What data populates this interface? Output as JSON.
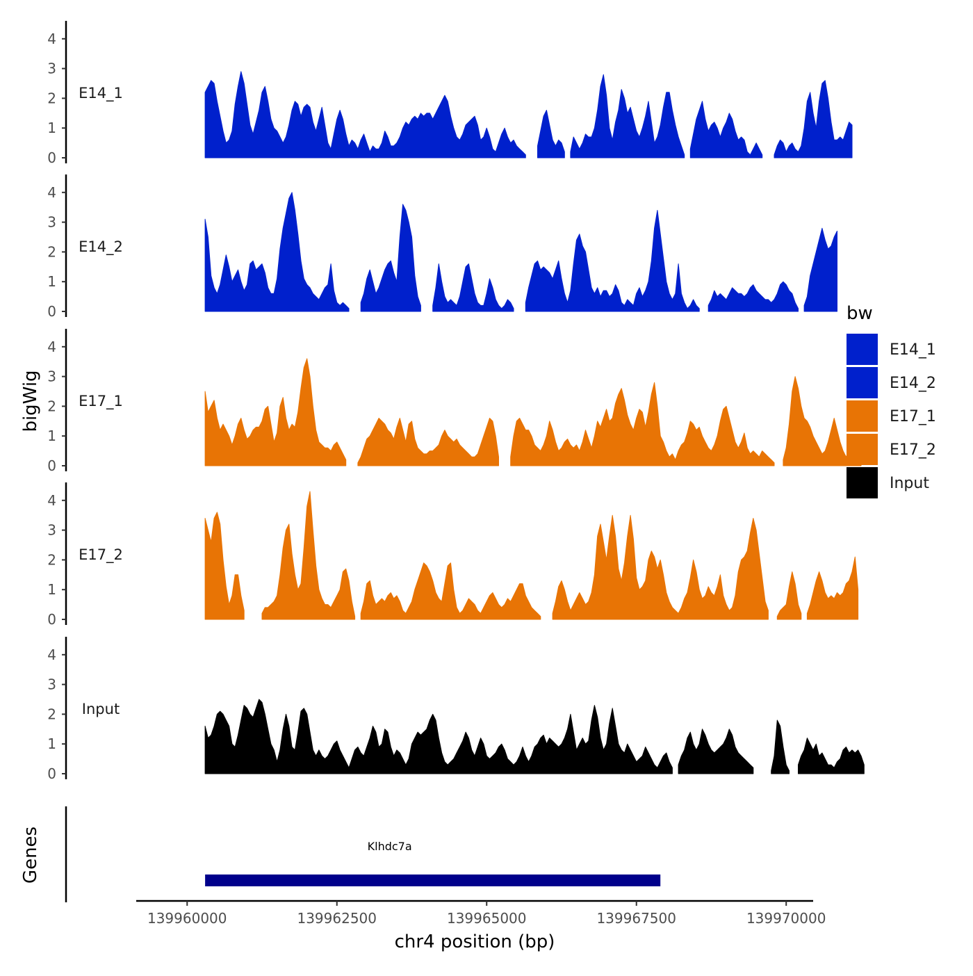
{
  "chart_data": {
    "type": "area",
    "title": "",
    "region": {
      "chromosome": "chr4",
      "start": 139960300,
      "end": 139970000
    },
    "xlim": [
      139959150,
      139970450
    ],
    "ylim": [
      0,
      4.5
    ],
    "xlabel": "chr4 position (bp)",
    "ylabel": "bigWig",
    "x_ticks": [
      {
        "value": 139960000,
        "label": "139960000"
      },
      {
        "value": 139962500,
        "label": "139962500"
      },
      {
        "value": 139965000,
        "label": "139965000"
      },
      {
        "value": 139967500,
        "label": "139967500"
      },
      {
        "value": 139970000,
        "label": "139970000"
      }
    ],
    "y_ticks": [
      {
        "value": 0,
        "label": "0"
      },
      {
        "value": 1,
        "label": "1"
      },
      {
        "value": 2,
        "label": "2"
      },
      {
        "value": 3,
        "label": "3"
      },
      {
        "value": 4,
        "label": "4"
      }
    ],
    "legend": {
      "title": "bw",
      "position": "right",
      "entries": [
        {
          "name": "E14_1",
          "color": "#0020CC"
        },
        {
          "name": "E14_2",
          "color": "#0020CC"
        },
        {
          "name": "E17_1",
          "color": "#E87405"
        },
        {
          "name": "E17_2",
          "color": "#E87405"
        },
        {
          "name": "Input",
          "color": "#000000"
        }
      ]
    },
    "series": [
      {
        "name": "E14_1",
        "color": "#0020CC",
        "step": 50,
        "values": [
          2.2,
          2.4,
          2.6,
          2.5,
          1.9,
          1.4,
          0.9,
          0.5,
          0.6,
          0.9,
          1.8,
          2.4,
          2.9,
          2.5,
          1.8,
          1.1,
          0.8,
          1.2,
          1.6,
          2.2,
          2.4,
          1.9,
          1.3,
          1.0,
          0.9,
          0.7,
          0.5,
          0.7,
          1.1,
          1.6,
          1.9,
          1.8,
          1.4,
          1.7,
          1.8,
          1.7,
          1.2,
          0.9,
          1.3,
          1.7,
          1.1,
          0.5,
          0.3,
          0.8,
          1.3,
          1.6,
          1.3,
          0.8,
          0.4,
          0.6,
          0.5,
          0.3,
          0.6,
          0.8,
          0.5,
          0.2,
          0.4,
          0.3,
          0.3,
          0.5,
          0.9,
          0.7,
          0.4,
          0.4,
          0.5,
          0.7,
          1.0,
          1.2,
          1.1,
          1.3,
          1.4,
          1.3,
          1.5,
          1.4,
          1.5,
          1.5,
          1.3,
          1.5,
          1.7,
          1.9,
          2.1,
          1.9,
          1.4,
          1.0,
          0.7,
          0.6,
          0.8,
          1.1,
          1.2,
          1.3,
          1.4,
          1.1,
          0.6,
          0.7,
          1.0,
          0.7,
          0.3,
          0.2,
          0.5,
          0.8,
          1.0,
          0.7,
          0.5,
          0.6,
          0.4,
          0.3,
          0.2,
          0.1,
          0.0,
          0.0,
          0.0,
          0.4,
          0.9,
          1.4,
          1.6,
          1.1,
          0.6,
          0.4,
          0.6,
          0.5,
          0.2,
          0.0,
          0.2,
          0.7,
          0.5,
          0.3,
          0.5,
          0.8,
          0.7,
          0.7,
          1.0,
          1.6,
          2.4,
          2.8,
          2.1,
          1.0,
          0.6,
          1.2,
          1.6,
          2.3,
          2.0,
          1.5,
          1.7,
          1.3,
          0.9,
          0.7,
          1.0,
          1.4,
          1.9,
          1.2,
          0.5,
          0.7,
          1.1,
          1.7,
          2.2,
          2.2,
          1.6,
          1.1,
          0.7,
          0.4,
          0.1,
          0.0,
          0.3,
          0.8,
          1.3,
          1.6,
          1.9,
          1.3,
          0.9,
          1.1,
          1.2,
          1.0,
          0.7,
          1.0,
          1.2,
          1.5,
          1.3,
          0.9,
          0.6,
          0.7,
          0.6,
          0.2,
          0.1,
          0.3,
          0.5,
          0.3,
          0.1,
          0.0,
          0.0,
          0.0,
          0.1,
          0.4,
          0.6,
          0.5,
          0.2,
          0.4,
          0.5,
          0.3,
          0.2,
          0.4,
          1.0,
          1.9,
          2.2,
          1.5,
          1.0,
          1.9,
          2.5,
          2.6,
          2.0,
          1.2,
          0.6,
          0.6,
          0.7,
          0.6,
          0.9,
          1.2,
          1.1
        ]
      },
      {
        "name": "E14_2",
        "color": "#0020CC",
        "step": 50,
        "values": [
          3.1,
          2.5,
          1.2,
          0.8,
          0.6,
          0.9,
          1.4,
          1.9,
          1.5,
          1.0,
          1.2,
          1.4,
          1.0,
          0.7,
          0.9,
          1.6,
          1.7,
          1.4,
          1.5,
          1.6,
          1.3,
          0.8,
          0.6,
          0.6,
          1.1,
          2.1,
          2.8,
          3.3,
          3.8,
          4.0,
          3.4,
          2.6,
          1.7,
          1.1,
          0.9,
          0.8,
          0.6,
          0.5,
          0.4,
          0.6,
          0.8,
          0.9,
          1.6,
          0.7,
          0.3,
          0.2,
          0.3,
          0.2,
          0.1,
          0.0,
          0.0,
          0.0,
          0.3,
          0.6,
          1.1,
          1.4,
          1.0,
          0.6,
          0.8,
          1.1,
          1.4,
          1.6,
          1.7,
          1.3,
          1.0,
          2.5,
          3.6,
          3.4,
          3.0,
          2.5,
          1.2,
          0.5,
          0.2,
          0.0,
          0.0,
          0.0,
          0.2,
          0.8,
          1.6,
          1.0,
          0.5,
          0.3,
          0.4,
          0.3,
          0.2,
          0.5,
          1.0,
          1.5,
          1.6,
          1.1,
          0.6,
          0.3,
          0.2,
          0.2,
          0.6,
          1.1,
          0.8,
          0.4,
          0.2,
          0.1,
          0.2,
          0.4,
          0.3,
          0.1,
          0.0,
          0.0,
          0.0,
          0.3,
          0.8,
          1.2,
          1.6,
          1.7,
          1.4,
          1.5,
          1.4,
          1.3,
          1.1,
          1.4,
          1.7,
          1.1,
          0.6,
          0.3,
          0.7,
          1.6,
          2.4,
          2.6,
          2.2,
          2.0,
          1.4,
          0.8,
          0.6,
          0.8,
          0.5,
          0.7,
          0.7,
          0.5,
          0.6,
          0.9,
          0.7,
          0.3,
          0.2,
          0.4,
          0.3,
          0.2,
          0.6,
          0.8,
          0.5,
          0.7,
          1.0,
          1.7,
          2.8,
          3.4,
          2.6,
          1.8,
          1.0,
          0.6,
          0.4,
          0.6,
          1.6,
          0.6,
          0.3,
          0.1,
          0.2,
          0.4,
          0.2,
          0.1,
          0.0,
          0.0,
          0.2,
          0.4,
          0.7,
          0.5,
          0.6,
          0.5,
          0.4,
          0.6,
          0.8,
          0.7,
          0.6,
          0.6,
          0.5,
          0.6,
          0.8,
          0.9,
          0.7,
          0.6,
          0.5,
          0.4,
          0.4,
          0.3,
          0.4,
          0.6,
          0.9,
          1.0,
          0.9,
          0.7,
          0.6,
          0.3,
          0.1,
          0.0,
          0.2,
          0.5,
          1.2,
          1.6,
          2.0,
          2.4,
          2.8,
          2.4,
          2.1,
          2.2,
          2.5,
          2.7
        ]
      },
      {
        "name": "E17_1",
        "color": "#E87405",
        "step": 50,
        "values": [
          2.5,
          1.8,
          2.0,
          2.2,
          1.6,
          1.2,
          1.4,
          1.2,
          1.0,
          0.7,
          1.0,
          1.4,
          1.6,
          1.2,
          0.9,
          1.0,
          1.2,
          1.3,
          1.3,
          1.5,
          1.9,
          2.0,
          1.4,
          0.8,
          1.1,
          2.0,
          2.3,
          1.6,
          1.2,
          1.4,
          1.3,
          1.8,
          2.6,
          3.3,
          3.6,
          3.0,
          2.0,
          1.2,
          0.8,
          0.7,
          0.6,
          0.6,
          0.5,
          0.7,
          0.8,
          0.6,
          0.4,
          0.2,
          0.0,
          0.0,
          0.0,
          0.1,
          0.3,
          0.6,
          0.9,
          1.0,
          1.2,
          1.4,
          1.6,
          1.5,
          1.4,
          1.2,
          1.1,
          0.9,
          1.3,
          1.6,
          1.2,
          0.8,
          1.4,
          1.5,
          0.9,
          0.6,
          0.5,
          0.4,
          0.4,
          0.5,
          0.5,
          0.6,
          0.7,
          1.0,
          1.2,
          1.0,
          0.9,
          0.8,
          0.9,
          0.7,
          0.6,
          0.5,
          0.4,
          0.3,
          0.3,
          0.4,
          0.7,
          1.0,
          1.3,
          1.6,
          1.5,
          1.0,
          0.3,
          0.0,
          0.0,
          0.0,
          0.3,
          1.0,
          1.5,
          1.6,
          1.4,
          1.2,
          1.2,
          1.0,
          0.7,
          0.6,
          0.5,
          0.7,
          1.0,
          1.5,
          1.2,
          0.8,
          0.5,
          0.6,
          0.8,
          0.9,
          0.7,
          0.6,
          0.7,
          0.5,
          0.8,
          1.2,
          0.9,
          0.6,
          1.0,
          1.5,
          1.3,
          1.6,
          1.9,
          1.5,
          1.6,
          2.1,
          2.4,
          2.6,
          2.2,
          1.7,
          1.4,
          1.2,
          1.6,
          1.9,
          1.8,
          1.3,
          1.8,
          2.4,
          2.8,
          2.0,
          1.0,
          0.8,
          0.5,
          0.3,
          0.4,
          0.2,
          0.5,
          0.7,
          0.8,
          1.1,
          1.5,
          1.4,
          1.2,
          1.3,
          1.0,
          0.8,
          0.6,
          0.5,
          0.7,
          1.0,
          1.5,
          1.9,
          2.0,
          1.6,
          1.2,
          0.8,
          0.6,
          0.8,
          1.1,
          0.6,
          0.4,
          0.5,
          0.4,
          0.3,
          0.5,
          0.4,
          0.3,
          0.2,
          0.1,
          0.0,
          0.0,
          0.2,
          0.6,
          1.4,
          2.5,
          3.0,
          2.6,
          2.0,
          1.6,
          1.5,
          1.3,
          1.0,
          0.8,
          0.6,
          0.4,
          0.5,
          0.8,
          1.2,
          1.6,
          1.2,
          0.8,
          0.5,
          0.3,
          0.5,
          0.8,
          0.9,
          0.7,
          0.6
        ]
      },
      {
        "name": "E17_2",
        "color": "#E87405",
        "step": 50,
        "values": [
          3.4,
          3.0,
          2.6,
          3.4,
          3.6,
          3.2,
          2.0,
          1.1,
          0.5,
          0.8,
          1.5,
          1.5,
          0.8,
          0.3,
          0.0,
          0.0,
          0.0,
          0.0,
          0.0,
          0.2,
          0.4,
          0.4,
          0.5,
          0.6,
          0.8,
          1.5,
          2.4,
          3.0,
          3.2,
          2.2,
          1.5,
          1.0,
          1.2,
          2.4,
          3.8,
          4.3,
          3.0,
          1.8,
          1.0,
          0.7,
          0.5,
          0.5,
          0.4,
          0.6,
          0.8,
          1.0,
          1.6,
          1.7,
          1.3,
          0.6,
          0.1,
          0.0,
          0.2,
          0.6,
          1.2,
          1.3,
          0.8,
          0.5,
          0.6,
          0.7,
          0.6,
          0.8,
          0.9,
          0.7,
          0.8,
          0.6,
          0.3,
          0.2,
          0.4,
          0.6,
          1.0,
          1.3,
          1.6,
          1.9,
          1.8,
          1.6,
          1.3,
          0.9,
          0.7,
          0.6,
          1.2,
          1.8,
          1.9,
          1.0,
          0.4,
          0.2,
          0.3,
          0.5,
          0.7,
          0.6,
          0.5,
          0.3,
          0.2,
          0.4,
          0.6,
          0.8,
          0.9,
          0.7,
          0.5,
          0.4,
          0.5,
          0.7,
          0.6,
          0.8,
          1.0,
          1.2,
          1.2,
          0.8,
          0.6,
          0.4,
          0.3,
          0.2,
          0.1,
          0.0,
          0.0,
          0.0,
          0.2,
          0.6,
          1.1,
          1.3,
          1.0,
          0.6,
          0.3,
          0.5,
          0.7,
          0.9,
          0.7,
          0.5,
          0.6,
          0.9,
          1.5,
          2.8,
          3.2,
          2.6,
          2.0,
          2.8,
          3.5,
          2.8,
          1.7,
          1.3,
          1.9,
          2.8,
          3.5,
          2.7,
          1.4,
          1.0,
          1.1,
          1.3,
          2.0,
          2.3,
          2.1,
          1.7,
          2.0,
          1.5,
          0.9,
          0.6,
          0.4,
          0.3,
          0.2,
          0.4,
          0.7,
          0.9,
          1.4,
          2.0,
          1.6,
          1.0,
          0.7,
          0.8,
          1.1,
          0.9,
          0.8,
          1.1,
          1.5,
          0.8,
          0.5,
          0.3,
          0.4,
          0.8,
          1.6,
          2.0,
          2.1,
          2.3,
          2.9,
          3.4,
          3.0,
          2.2,
          1.4,
          0.6,
          0.3,
          0.0,
          0.0,
          0.1,
          0.3,
          0.4,
          0.5,
          1.1,
          1.6,
          1.2,
          0.5,
          0.2,
          0.0,
          0.2,
          0.5,
          0.9,
          1.3,
          1.6,
          1.3,
          0.9,
          0.7,
          0.8,
          0.7,
          0.9,
          0.8,
          0.9,
          1.2,
          1.3,
          1.6,
          2.1,
          1.0
        ]
      },
      {
        "name": "Input",
        "color": "#000000",
        "step": 50,
        "values": [
          1.6,
          1.2,
          1.3,
          1.6,
          2.0,
          2.1,
          2.0,
          1.8,
          1.6,
          1.0,
          0.9,
          1.3,
          1.8,
          2.3,
          2.2,
          2.0,
          1.9,
          2.2,
          2.5,
          2.4,
          2.0,
          1.5,
          1.0,
          0.8,
          0.4,
          0.8,
          1.5,
          2.0,
          1.6,
          0.9,
          0.8,
          1.4,
          2.1,
          2.2,
          2.0,
          1.4,
          0.8,
          0.6,
          0.8,
          0.6,
          0.5,
          0.6,
          0.8,
          1.0,
          1.1,
          0.8,
          0.6,
          0.4,
          0.2,
          0.5,
          0.8,
          0.9,
          0.7,
          0.6,
          0.9,
          1.2,
          1.6,
          1.4,
          0.9,
          1.0,
          1.5,
          1.4,
          0.9,
          0.6,
          0.8,
          0.7,
          0.5,
          0.3,
          0.5,
          1.0,
          1.2,
          1.4,
          1.3,
          1.4,
          1.5,
          1.8,
          2.0,
          1.8,
          1.2,
          0.7,
          0.4,
          0.3,
          0.4,
          0.5,
          0.7,
          0.9,
          1.1,
          1.4,
          1.2,
          0.8,
          0.6,
          0.9,
          1.2,
          1.0,
          0.6,
          0.5,
          0.6,
          0.7,
          0.9,
          1.0,
          0.8,
          0.5,
          0.4,
          0.3,
          0.4,
          0.6,
          0.9,
          0.6,
          0.4,
          0.6,
          0.9,
          1.0,
          1.2,
          1.3,
          1.0,
          1.2,
          1.1,
          1.0,
          0.9,
          1.0,
          1.2,
          1.5,
          2.0,
          1.4,
          0.8,
          1.0,
          1.2,
          1.0,
          1.1,
          1.8,
          2.3,
          1.9,
          1.2,
          0.8,
          1.0,
          1.7,
          2.2,
          1.6,
          1.0,
          0.8,
          0.7,
          1.0,
          0.8,
          0.6,
          0.4,
          0.5,
          0.6,
          0.9,
          0.7,
          0.5,
          0.3,
          0.2,
          0.4,
          0.6,
          0.7,
          0.4,
          0.2,
          0.0,
          0.3,
          0.6,
          0.8,
          1.2,
          1.4,
          1.0,
          0.8,
          1.0,
          1.5,
          1.3,
          1.0,
          0.8,
          0.7,
          0.8,
          0.9,
          1.0,
          1.2,
          1.5,
          1.3,
          0.9,
          0.7,
          0.6,
          0.5,
          0.4,
          0.3,
          0.2,
          0.0,
          0.0,
          0.0,
          0.0,
          0.0,
          0.1,
          0.6,
          1.8,
          1.6,
          0.9,
          0.3,
          0.1,
          0.0,
          0.0,
          0.3,
          0.6,
          0.8,
          1.2,
          1.0,
          0.8,
          1.0,
          0.6,
          0.7,
          0.5,
          0.3,
          0.3,
          0.2,
          0.4,
          0.5,
          0.8,
          0.9,
          0.7,
          0.8,
          0.7,
          0.8,
          0.6,
          0.3
        ]
      }
    ],
    "genes": {
      "title": "Genes",
      "items": [
        {
          "name": "Klhdc7a",
          "start": 139960300,
          "end": 139967900,
          "color": "#00008B"
        }
      ]
    }
  }
}
